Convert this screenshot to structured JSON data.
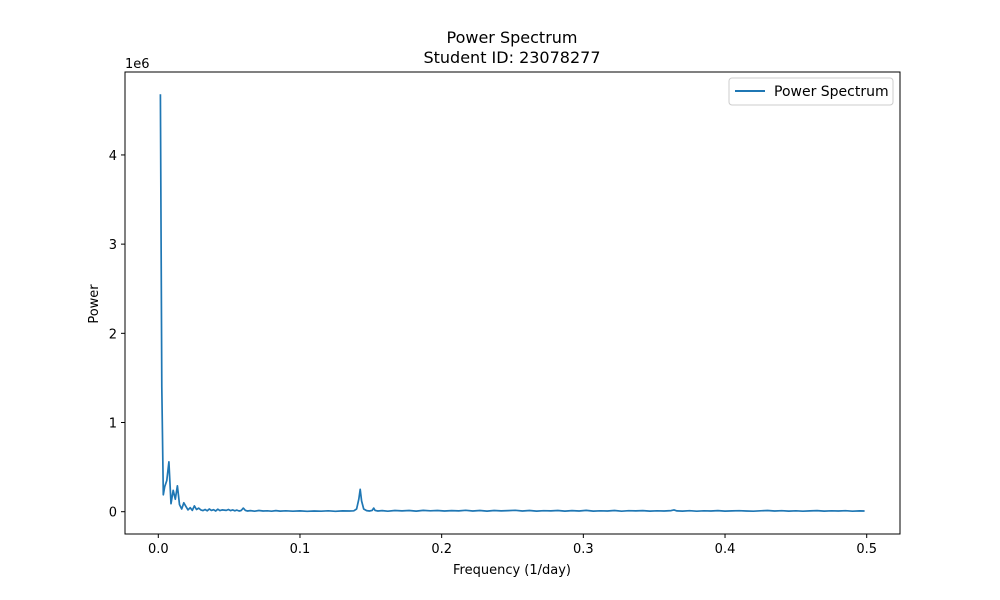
{
  "chart_data": {
    "type": "line",
    "title": "Power Spectrum",
    "subtitle": "Student ID: 23078277",
    "xlabel": "Frequency (1/day)",
    "ylabel": "Power",
    "y_scale_offset_label": "1e6",
    "y_multiplier": 1000000,
    "xlim": [
      -0.0235,
      0.5235
    ],
    "ylim": [
      -250000,
      4930000
    ],
    "x_ticks": [
      0.0,
      0.1,
      0.2,
      0.3,
      0.4,
      0.5
    ],
    "x_tick_labels": [
      "0.0",
      "0.1",
      "0.2",
      "0.3",
      "0.4",
      "0.5"
    ],
    "y_ticks": [
      0,
      1000000,
      2000000,
      3000000,
      4000000
    ],
    "y_tick_labels": [
      "0",
      "1",
      "2",
      "3",
      "4"
    ],
    "grid": false,
    "legend_position": "top-right",
    "series": [
      {
        "name": "Power Spectrum",
        "color": "#1f77b4",
        "x": [
          0.0015,
          0.0025,
          0.0035,
          0.0045,
          0.006,
          0.0075,
          0.009,
          0.0105,
          0.012,
          0.0135,
          0.015,
          0.0165,
          0.018,
          0.0195,
          0.021,
          0.0225,
          0.024,
          0.0255,
          0.027,
          0.0285,
          0.03,
          0.0315,
          0.033,
          0.0345,
          0.036,
          0.0375,
          0.039,
          0.0405,
          0.042,
          0.0435,
          0.045,
          0.0465,
          0.048,
          0.0495,
          0.051,
          0.0525,
          0.054,
          0.0555,
          0.057,
          0.0585,
          0.06,
          0.0615,
          0.063,
          0.065,
          0.068,
          0.071,
          0.074,
          0.077,
          0.08,
          0.083,
          0.086,
          0.09,
          0.095,
          0.1,
          0.105,
          0.11,
          0.115,
          0.12,
          0.125,
          0.13,
          0.135,
          0.138,
          0.14,
          0.1415,
          0.1425,
          0.1435,
          0.145,
          0.147,
          0.149,
          0.151,
          0.152,
          0.153,
          0.155,
          0.158,
          0.162,
          0.167,
          0.172,
          0.177,
          0.182,
          0.187,
          0.192,
          0.197,
          0.202,
          0.207,
          0.212,
          0.217,
          0.222,
          0.227,
          0.232,
          0.237,
          0.242,
          0.247,
          0.252,
          0.257,
          0.262,
          0.267,
          0.272,
          0.277,
          0.282,
          0.287,
          0.292,
          0.297,
          0.302,
          0.307,
          0.312,
          0.317,
          0.322,
          0.327,
          0.332,
          0.337,
          0.342,
          0.347,
          0.352,
          0.357,
          0.362,
          0.364,
          0.366,
          0.37,
          0.375,
          0.38,
          0.385,
          0.39,
          0.395,
          0.4,
          0.405,
          0.41,
          0.415,
          0.42,
          0.425,
          0.43,
          0.435,
          0.44,
          0.445,
          0.45,
          0.455,
          0.46,
          0.465,
          0.47,
          0.475,
          0.48,
          0.485,
          0.49,
          0.495,
          0.4985
        ],
        "y": [
          4680000,
          1400000,
          190000,
          280000,
          350000,
          560000,
          90000,
          240000,
          140000,
          290000,
          80000,
          30000,
          100000,
          60000,
          20000,
          45000,
          15000,
          65000,
          25000,
          40000,
          20000,
          12000,
          25000,
          10000,
          30000,
          15000,
          22000,
          8000,
          28000,
          12000,
          20000,
          18000,
          15000,
          25000,
          12000,
          20000,
          10000,
          18000,
          8000,
          14000,
          40000,
          15000,
          8000,
          12000,
          6000,
          14000,
          8000,
          10000,
          6000,
          12000,
          7000,
          10000,
          6000,
          9000,
          5000,
          8000,
          6000,
          10000,
          5000,
          9000,
          8000,
          10000,
          30000,
          140000,
          250000,
          120000,
          30000,
          12000,
          8000,
          15000,
          40000,
          15000,
          8000,
          12000,
          6000,
          14000,
          9000,
          13000,
          7000,
          15000,
          10000,
          14000,
          8000,
          12000,
          9000,
          16000,
          8000,
          13000,
          7000,
          14000,
          9000,
          12000,
          16000,
          8000,
          13000,
          7000,
          11000,
          9000,
          14000,
          7000,
          12000,
          8000,
          15000,
          7000,
          10000,
          8000,
          13000,
          6000,
          11000,
          9000,
          12000,
          7000,
          10000,
          8000,
          12000,
          20000,
          9000,
          7000,
          11000,
          6000,
          10000,
          8000,
          12000,
          7000,
          9000,
          11000,
          8000,
          6000,
          10000,
          14000,
          8000,
          11000,
          7000,
          10000,
          6000,
          9000,
          12000,
          7000,
          10000,
          8000,
          11000,
          6000,
          9000,
          8000
        ]
      }
    ]
  }
}
